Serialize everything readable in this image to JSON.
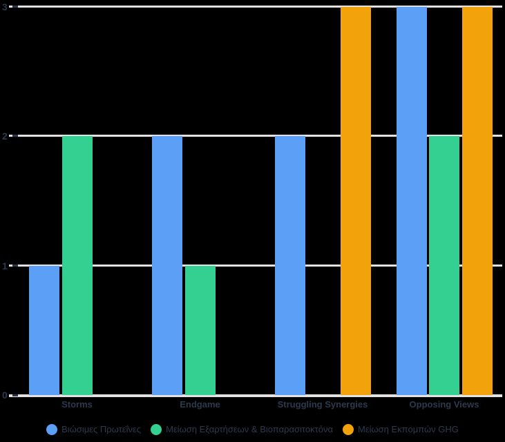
{
  "chart_data": {
    "type": "bar",
    "title": "",
    "xlabel": "",
    "ylabel": "",
    "categories": [
      "Storms",
      "Endgame",
      "Struggling Synergies",
      "Opposing Views"
    ],
    "series": [
      {
        "name": "Βιώσιμες Πρωτεΐνες",
        "color": "#5b9ff6",
        "values": [
          1,
          2,
          2,
          3
        ]
      },
      {
        "name": "Μείωση Εξαρτήσεων & Βιοπαρασιτοκτόνα",
        "color": "#34d092",
        "values": [
          2,
          1,
          0,
          2
        ]
      },
      {
        "name": "Μείωση Εκπομπών GHG",
        "color": "#f2a20b",
        "values": [
          0,
          0,
          3,
          3
        ]
      }
    ],
    "ylim": [
      0,
      3
    ],
    "yticks": [
      0,
      1,
      2,
      3
    ],
    "grid": true,
    "legend_position": "bottom"
  },
  "colors": {
    "background": "#000000",
    "gridline": "#e2e2e4",
    "axis_tick": "#2b3648",
    "text": "#2d3a4e"
  }
}
